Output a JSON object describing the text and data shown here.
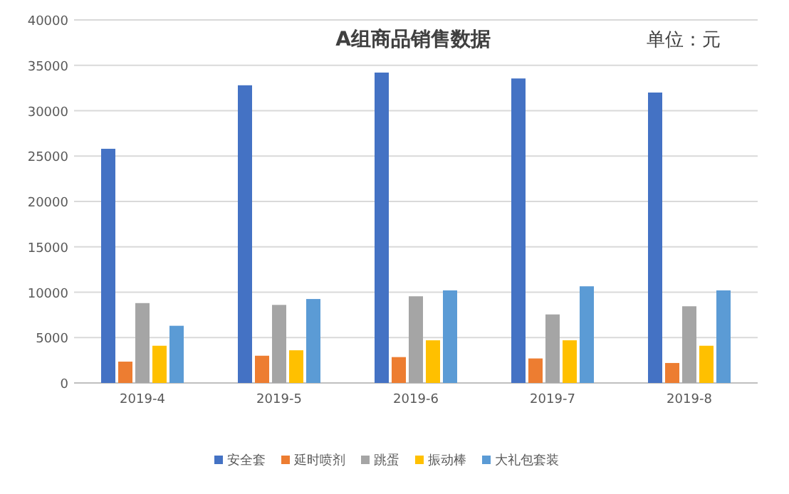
{
  "chart_data": {
    "type": "bar",
    "title": "A组商品销售数据",
    "annotations": [
      "单位：元"
    ],
    "categories": [
      "2019-4",
      "2019-5",
      "2019-6",
      "2019-7",
      "2019-8"
    ],
    "series": [
      {
        "name": "安全套",
        "color": "#4472c4",
        "values": [
          25800,
          32800,
          34200,
          33550,
          32000
        ]
      },
      {
        "name": "延时喷剂",
        "color": "#ed7d31",
        "values": [
          2350,
          3000,
          2850,
          2700,
          2200
        ]
      },
      {
        "name": "跳蛋",
        "color": "#a5a5a5",
        "values": [
          8800,
          8600,
          9550,
          7550,
          8450
        ]
      },
      {
        "name": "振动棒",
        "color": "#ffc000",
        "values": [
          4100,
          3600,
          4700,
          4700,
          4100
        ]
      },
      {
        "name": "大礼包套装",
        "color": "#5b9bd5",
        "values": [
          6300,
          9250,
          10200,
          10650,
          10200
        ]
      }
    ],
    "ylim": [
      0,
      40000
    ],
    "yticks": [
      0,
      5000,
      10000,
      15000,
      20000,
      25000,
      30000,
      35000,
      40000
    ],
    "grid": "y",
    "legend": "bottom"
  }
}
